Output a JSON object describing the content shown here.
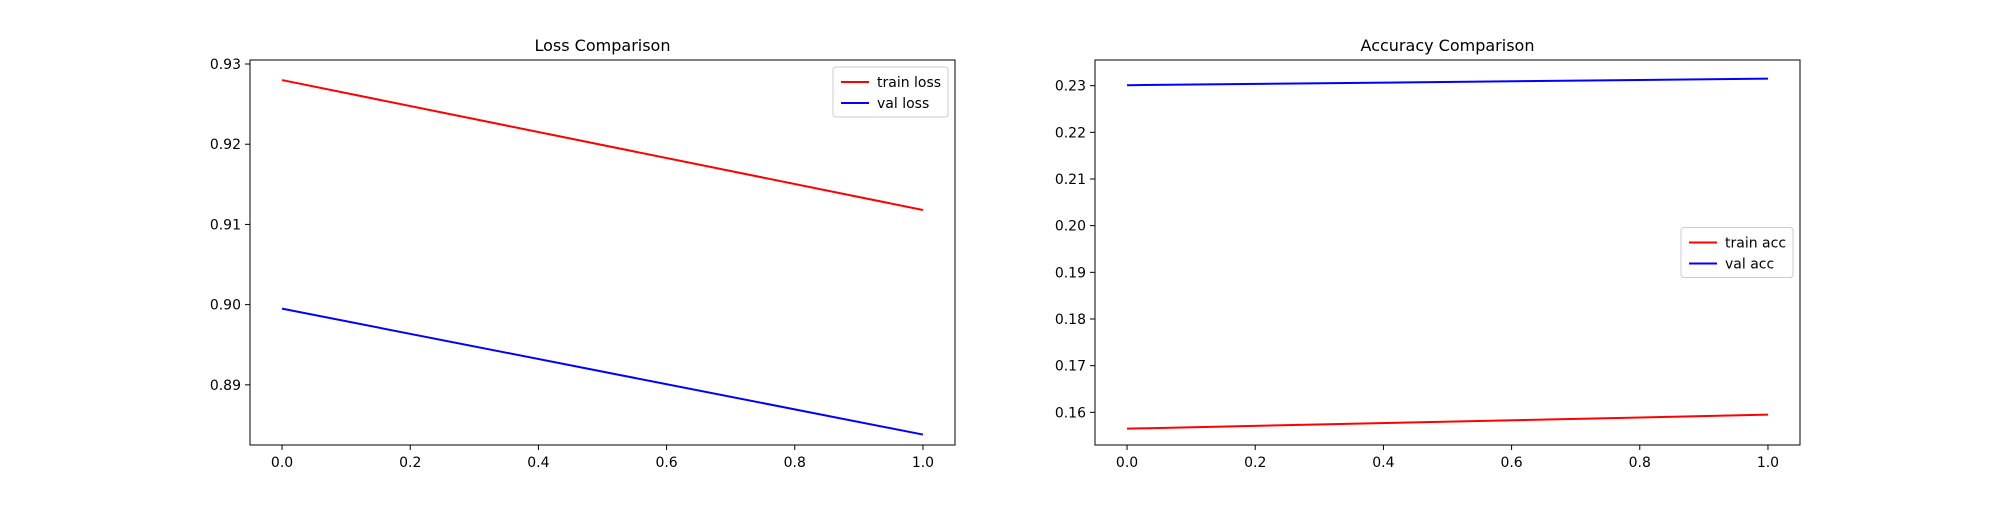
{
  "chart_data": [
    {
      "type": "line",
      "title": "Loss Comparison",
      "xlabel": "",
      "ylabel": "",
      "xlim": [
        -0.05,
        1.05
      ],
      "ylim": [
        0.8825,
        0.9305
      ],
      "xticks": [
        "0.0",
        "0.2",
        "0.4",
        "0.6",
        "0.8",
        "1.0"
      ],
      "yticks": [
        "0.89",
        "0.90",
        "0.91",
        "0.92",
        "0.93"
      ],
      "grid": false,
      "legend_position": "top-right",
      "series": [
        {
          "name": "train loss",
          "color": "#ff0000",
          "x": [
            0.0,
            1.0
          ],
          "y": [
            0.928,
            0.9118
          ]
        },
        {
          "name": "val loss",
          "color": "#0000ff",
          "x": [
            0.0,
            1.0
          ],
          "y": [
            0.8995,
            0.8838
          ]
        }
      ]
    },
    {
      "type": "line",
      "title": "Accuracy Comparison",
      "xlabel": "",
      "ylabel": "",
      "xlim": [
        -0.05,
        1.05
      ],
      "ylim": [
        0.153,
        0.2355
      ],
      "xticks": [
        "0.0",
        "0.2",
        "0.4",
        "0.6",
        "0.8",
        "1.0"
      ],
      "yticks": [
        "0.16",
        "0.17",
        "0.18",
        "0.19",
        "0.20",
        "0.21",
        "0.22",
        "0.23"
      ],
      "grid": false,
      "legend_position": "center-right",
      "series": [
        {
          "name": "train acc",
          "color": "#ff0000",
          "x": [
            0.0,
            1.0
          ],
          "y": [
            0.1565,
            0.1595
          ]
        },
        {
          "name": "val acc",
          "color": "#0000ff",
          "x": [
            0.0,
            1.0
          ],
          "y": [
            0.2301,
            0.2315
          ]
        }
      ]
    }
  ]
}
